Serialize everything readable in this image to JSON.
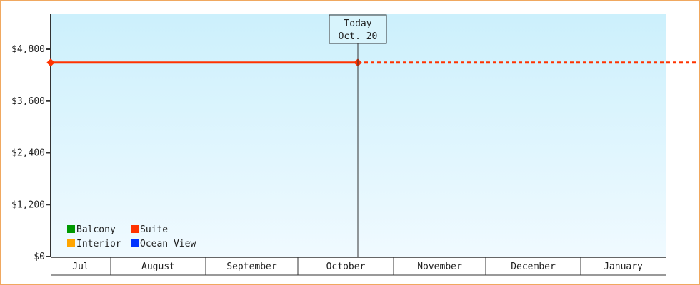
{
  "chart_data": {
    "type": "line",
    "title": "",
    "xlabel": "",
    "ylabel": "",
    "ylim": [
      0,
      5600
    ],
    "y_ticks": [
      {
        "value": 0,
        "label": "$0"
      },
      {
        "value": 1200,
        "label": "$1,200"
      },
      {
        "value": 2400,
        "label": "$2,400"
      },
      {
        "value": 3600,
        "label": "$3,600"
      },
      {
        "value": 4800,
        "label": "$4,800"
      }
    ],
    "x_categories": [
      "Jul",
      "August",
      "September",
      "October",
      "November",
      "December",
      "January"
    ],
    "today_marker": {
      "line1": "Today",
      "line2": "Oct. 20"
    },
    "series": [
      {
        "name": "Suite",
        "color": "#ff3300",
        "points": [
          {
            "x": "Jul 1",
            "y": 4490
          },
          {
            "x": "Oct. 20",
            "y": 4490
          }
        ],
        "projection": {
          "to": "January end",
          "y": 4490,
          "style": "dashed"
        }
      }
    ],
    "legend": {
      "placement": "bottom-left",
      "items": [
        {
          "name": "Balcony",
          "color": "#009900"
        },
        {
          "name": "Suite",
          "color": "#ff3300"
        },
        {
          "name": "Interior",
          "color": "#ffa500"
        },
        {
          "name": "Ocean View",
          "color": "#0033ff"
        }
      ]
    },
    "grid": false,
    "background_gradient": [
      "#ccf0fc",
      "#f0faff"
    ]
  }
}
